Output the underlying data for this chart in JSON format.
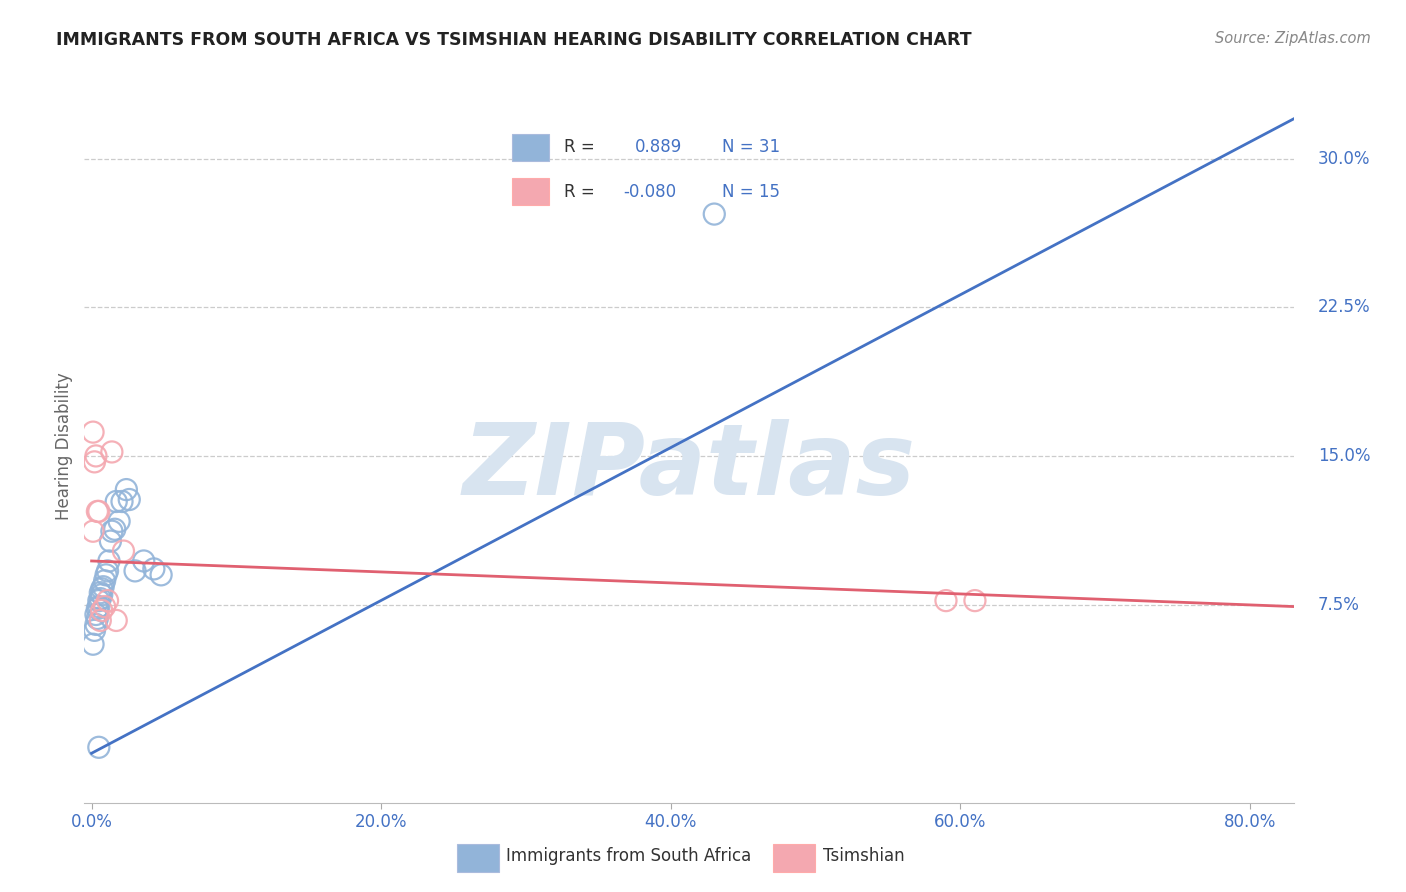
{
  "title": "IMMIGRANTS FROM SOUTH AFRICA VS TSIMSHIAN HEARING DISABILITY CORRELATION CHART",
  "source": "Source: ZipAtlas.com",
  "ylabel": "Hearing Disability",
  "x_tick_labels": [
    "0.0%",
    "20.0%",
    "40.0%",
    "60.0%",
    "80.0%"
  ],
  "x_tick_positions": [
    0.0,
    0.2,
    0.4,
    0.6,
    0.8
  ],
  "y_tick_labels": [
    "7.5%",
    "15.0%",
    "22.5%",
    "30.0%"
  ],
  "y_tick_positions": [
    0.075,
    0.15,
    0.225,
    0.3
  ],
  "xlim": [
    -0.005,
    0.83
  ],
  "ylim": [
    -0.025,
    0.335
  ],
  "legend_line1_left": "R =  ",
  "legend_line1_r": "0.889",
  "legend_line1_n": "  N = 31",
  "legend_line2_left": "R = ",
  "legend_line2_r": "-0.080",
  "legend_line2_n": "  N = 15",
  "blue_color": "#92B4D9",
  "pink_color": "#F4A8B0",
  "line_blue": "#4472C4",
  "line_pink": "#E06070",
  "text_blue": "#4472C4",
  "watermark_color": "#D8E4F0",
  "grid_color": "#CCCCCC",
  "background_color": "#FFFFFF",
  "blue_scatter_x": [
    0.001,
    0.002,
    0.003,
    0.003,
    0.004,
    0.004,
    0.005,
    0.005,
    0.006,
    0.006,
    0.007,
    0.007,
    0.008,
    0.009,
    0.01,
    0.011,
    0.012,
    0.013,
    0.014,
    0.016,
    0.017,
    0.019,
    0.021,
    0.024,
    0.026,
    0.03,
    0.036,
    0.043,
    0.048,
    0.43,
    0.005
  ],
  "blue_scatter_y": [
    0.055,
    0.062,
    0.065,
    0.07,
    0.068,
    0.073,
    0.074,
    0.077,
    0.078,
    0.081,
    0.08,
    0.083,
    0.084,
    0.087,
    0.09,
    0.092,
    0.097,
    0.107,
    0.112,
    0.113,
    0.127,
    0.117,
    0.127,
    0.133,
    0.128,
    0.092,
    0.097,
    0.093,
    0.09,
    0.272,
    0.003
  ],
  "pink_scatter_x": [
    0.001,
    0.002,
    0.003,
    0.004,
    0.005,
    0.006,
    0.007,
    0.009,
    0.011,
    0.014,
    0.017,
    0.022,
    0.59,
    0.61,
    0.001
  ],
  "pink_scatter_y": [
    0.162,
    0.147,
    0.15,
    0.122,
    0.122,
    0.067,
    0.072,
    0.074,
    0.077,
    0.152,
    0.067,
    0.102,
    0.077,
    0.077,
    0.112
  ],
  "blue_line_x": [
    0.0,
    0.83
  ],
  "blue_line_y": [
    0.0,
    0.32
  ],
  "pink_line_x": [
    0.0,
    0.83
  ],
  "pink_line_y": [
    0.097,
    0.074
  ]
}
